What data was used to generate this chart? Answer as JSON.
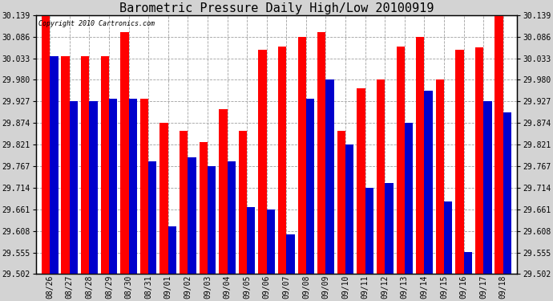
{
  "title": "Barometric Pressure Daily High/Low 20100919",
  "copyright": "Copyright 2010 Cartronics.com",
  "dates": [
    "08/26",
    "08/27",
    "08/28",
    "08/29",
    "08/30",
    "08/31",
    "09/01",
    "09/02",
    "09/03",
    "09/04",
    "09/05",
    "09/06",
    "09/07",
    "09/08",
    "09/09",
    "09/10",
    "09/11",
    "09/12",
    "09/13",
    "09/14",
    "09/15",
    "09/16",
    "09/17",
    "09/18"
  ],
  "highs": [
    30.139,
    30.039,
    30.039,
    30.039,
    30.098,
    29.933,
    29.874,
    29.854,
    29.827,
    29.907,
    29.854,
    30.054,
    30.062,
    30.086,
    30.098,
    29.854,
    29.96,
    29.98,
    30.062,
    30.086,
    29.98,
    30.054,
    30.06,
    30.139
  ],
  "lows": [
    30.039,
    29.927,
    29.927,
    29.933,
    29.933,
    29.78,
    29.62,
    29.79,
    29.767,
    29.78,
    29.667,
    29.66,
    29.6,
    29.933,
    29.98,
    29.82,
    29.714,
    29.727,
    29.874,
    29.953,
    29.68,
    29.557,
    29.927,
    29.9
  ],
  "high_color": "#ff0000",
  "low_color": "#0000cc",
  "bg_color": "#d3d3d3",
  "plot_bg_color": "#ffffff",
  "grid_color": "#a0a0a0",
  "ymin": 29.502,
  "ymax": 30.139,
  "yticks": [
    29.502,
    29.555,
    29.608,
    29.661,
    29.714,
    29.767,
    29.821,
    29.874,
    29.927,
    29.98,
    30.033,
    30.086,
    30.139
  ],
  "bar_width": 0.42,
  "title_fontsize": 11,
  "tick_fontsize": 7,
  "copyright_fontsize": 6
}
